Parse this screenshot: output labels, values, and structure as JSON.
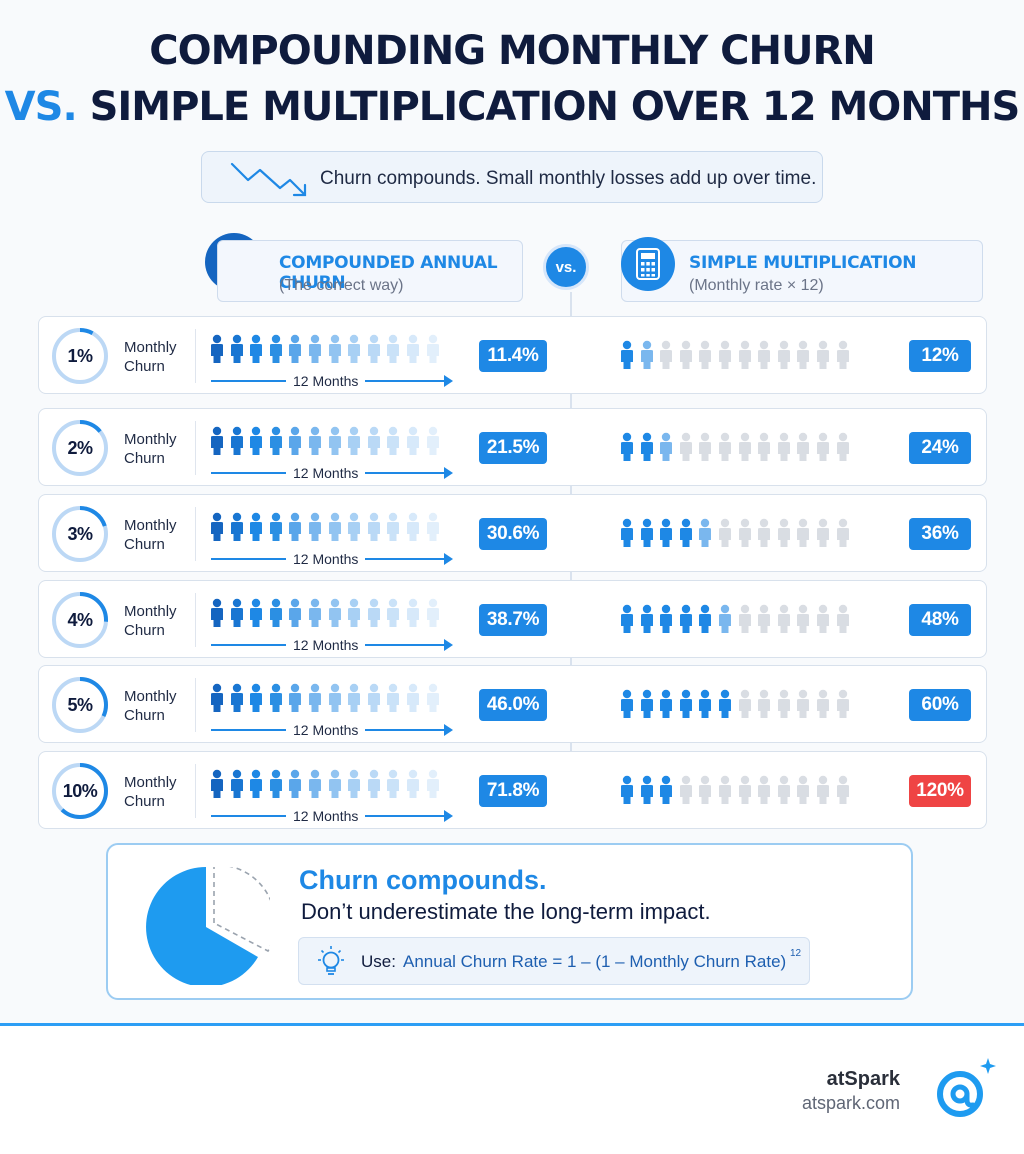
{
  "title": {
    "line1": "COMPOUNDING MONTHLY CHURN",
    "vs": "VS.",
    "line2_rest": "SIMPLE MULTIPLICATION OVER 12 MONTHS"
  },
  "banner": {
    "text": "Churn compounds. Small monthly losses add up over time.",
    "icon": "trend-down-icon"
  },
  "columns": {
    "left": {
      "title": "COMPOUNDED ANNUAL CHURN",
      "subtitle": "(The correct way)",
      "icon": "chart-up-icon"
    },
    "vs": "vs.",
    "right": {
      "title": "SIMPLE MULTIPLICATION",
      "subtitle": "(Monthly rate × 12)",
      "icon": "calculator-icon"
    }
  },
  "row_label": "Monthly\nChurn",
  "months_label": "12 Months",
  "colors": {
    "accent": "#1e88e5",
    "dark": "#1565c0",
    "light": "#bcd8f5",
    "gray": "#d9dde3",
    "alert": "#ef4444"
  },
  "chart_data": {
    "type": "table",
    "series": [
      {
        "name": "COMPOUNDED ANNUAL CHURN",
        "values": [
          11.4,
          21.5,
          30.6,
          38.7,
          46.0,
          71.8
        ]
      },
      {
        "name": "SIMPLE MULTIPLICATION",
        "values": [
          12,
          24,
          36,
          48,
          60,
          120
        ]
      }
    ],
    "rows": [
      {
        "monthly": "1%",
        "monthly_value": 1,
        "compounded": "11.4%",
        "simple": "12%",
        "simple_alert": false
      },
      {
        "monthly": "2%",
        "monthly_value": 2,
        "compounded": "21.5%",
        "simple": "24%",
        "simple_alert": false
      },
      {
        "monthly": "3%",
        "monthly_value": 3,
        "compounded": "30.6%",
        "simple": "36%",
        "simple_alert": false
      },
      {
        "monthly": "4%",
        "monthly_value": 4,
        "compounded": "38.7%",
        "simple": "48%",
        "simple_alert": false
      },
      {
        "monthly": "5%",
        "monthly_value": 5,
        "compounded": "46.0%",
        "simple": "60%",
        "simple_alert": false
      },
      {
        "monthly": "10%",
        "monthly_value": 10,
        "compounded": "71.8%",
        "simple": "120%",
        "simple_alert": true
      }
    ]
  },
  "callout": {
    "headline": "Churn compounds.",
    "subline": "Don’t underestimate the long-term impact.",
    "use_label": "Use:",
    "formula": "Annual Churn Rate = 1 – (1 – Monthly Churn Rate)",
    "exponent": "12",
    "icon": "lightbulb-icon"
  },
  "brand": {
    "name": "atSpark",
    "url": "atspark.com",
    "logo": "at-sign-logo-icon"
  }
}
